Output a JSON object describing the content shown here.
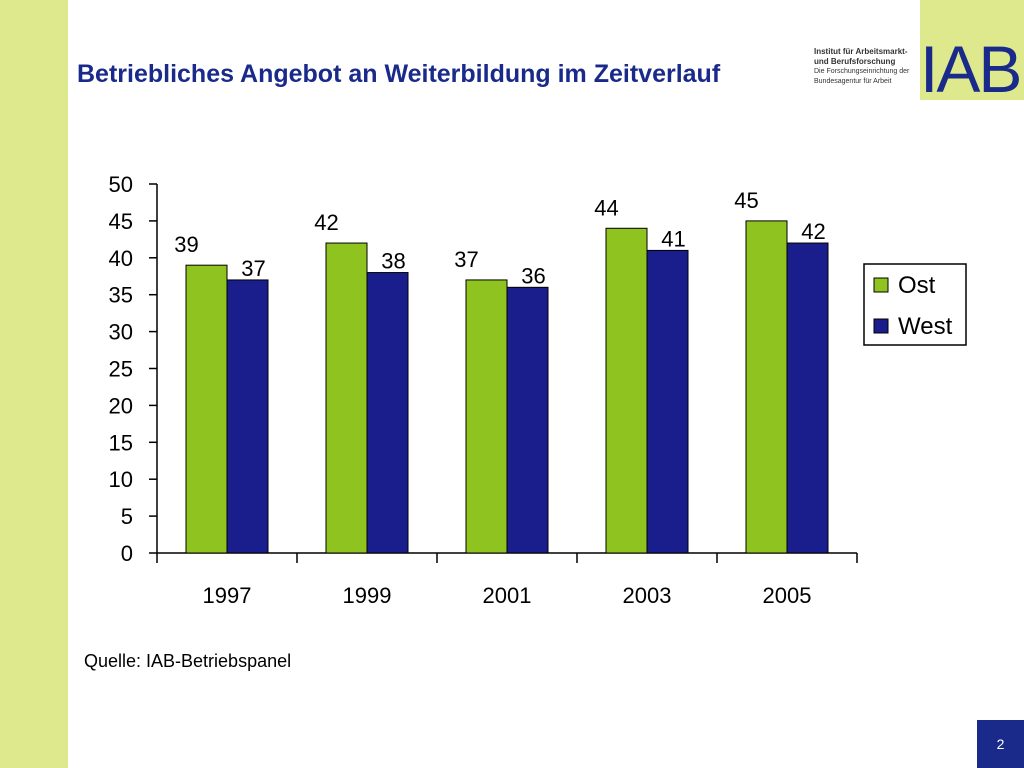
{
  "title": "Betriebliches Angebot an Weiterbildung im Zeitverlauf",
  "logo": {
    "line1": "Institut für Arbeitsmarkt-",
    "line2": "und Berufsforschung",
    "line3": "Die Forschungseinrichtung der",
    "line4": "Bundesagentur für Arbeit",
    "mark": "IAB"
  },
  "source": "Quelle: IAB-Betriebspanel",
  "page_number": "2",
  "colors": {
    "ost": "#8fc31f",
    "west": "#1a1d8c",
    "band": "#dde98c",
    "title": "#1a2a8a"
  },
  "chart_data": {
    "type": "bar",
    "categories": [
      "1997",
      "1999",
      "2001",
      "2003",
      "2005"
    ],
    "series": [
      {
        "name": "Ost",
        "values": [
          39,
          42,
          37,
          44,
          45
        ]
      },
      {
        "name": "West",
        "values": [
          37,
          38,
          36,
          41,
          42
        ]
      }
    ],
    "ylim": [
      0,
      50
    ],
    "yticks": [
      0,
      5,
      10,
      15,
      20,
      25,
      30,
      35,
      40,
      45,
      50
    ],
    "legend_position": "right",
    "grid": false
  }
}
